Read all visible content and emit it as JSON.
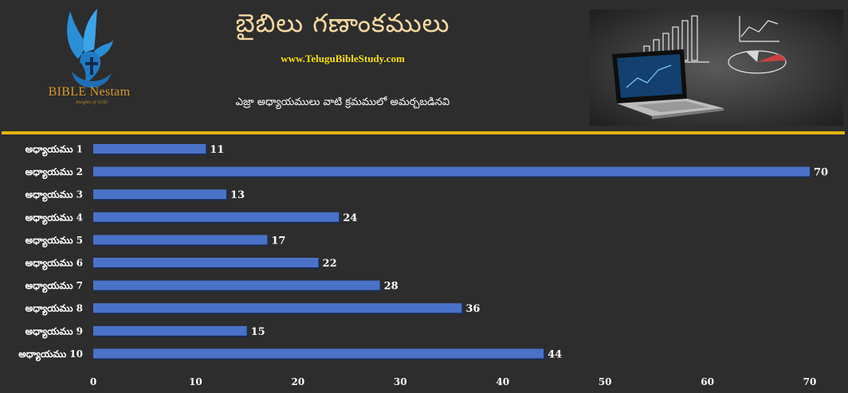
{
  "brand": {
    "name": "BIBLE Nestam",
    "tagline": "Insights of GOD"
  },
  "header": {
    "title": "బైబిలు గణాంకములు",
    "website": "www.TeluguBibleStudy.com",
    "subtitle": "ఎజ్రా అధ్యాయములు వాటి క్రమములో అమర్చబడినవి"
  },
  "colors": {
    "background": "#2d2d2d",
    "bar": "#4a72c9",
    "bar_shadow": "#1c2d52",
    "divider": "#e2b400",
    "title": "#f5d9a3",
    "website": "#f4e000",
    "brand": "#d89a2a",
    "dove": "#2b8fd6"
  },
  "icons": [
    "dove-cross-hand-logo",
    "laptop-charts-hero-image"
  ],
  "chart_data": {
    "type": "bar",
    "orientation": "horizontal",
    "categories": [
      "అధ్యాయము 1",
      "అధ్యాయము 2",
      "అధ్యాయము 3",
      "అధ్యాయము 4",
      "అధ్యాయము 5",
      "అధ్యాయము 6",
      "అధ్యాయము 7",
      "అధ్యాయము 8",
      "అధ్యాయము 9",
      "అధ్యాయము 10"
    ],
    "values": [
      11,
      70,
      13,
      24,
      17,
      22,
      28,
      36,
      15,
      44
    ],
    "xlim": [
      0,
      70
    ],
    "xticks": [
      0,
      10,
      20,
      30,
      40,
      50,
      60,
      70
    ],
    "data_labels": true,
    "grid": false,
    "legend": "none"
  }
}
